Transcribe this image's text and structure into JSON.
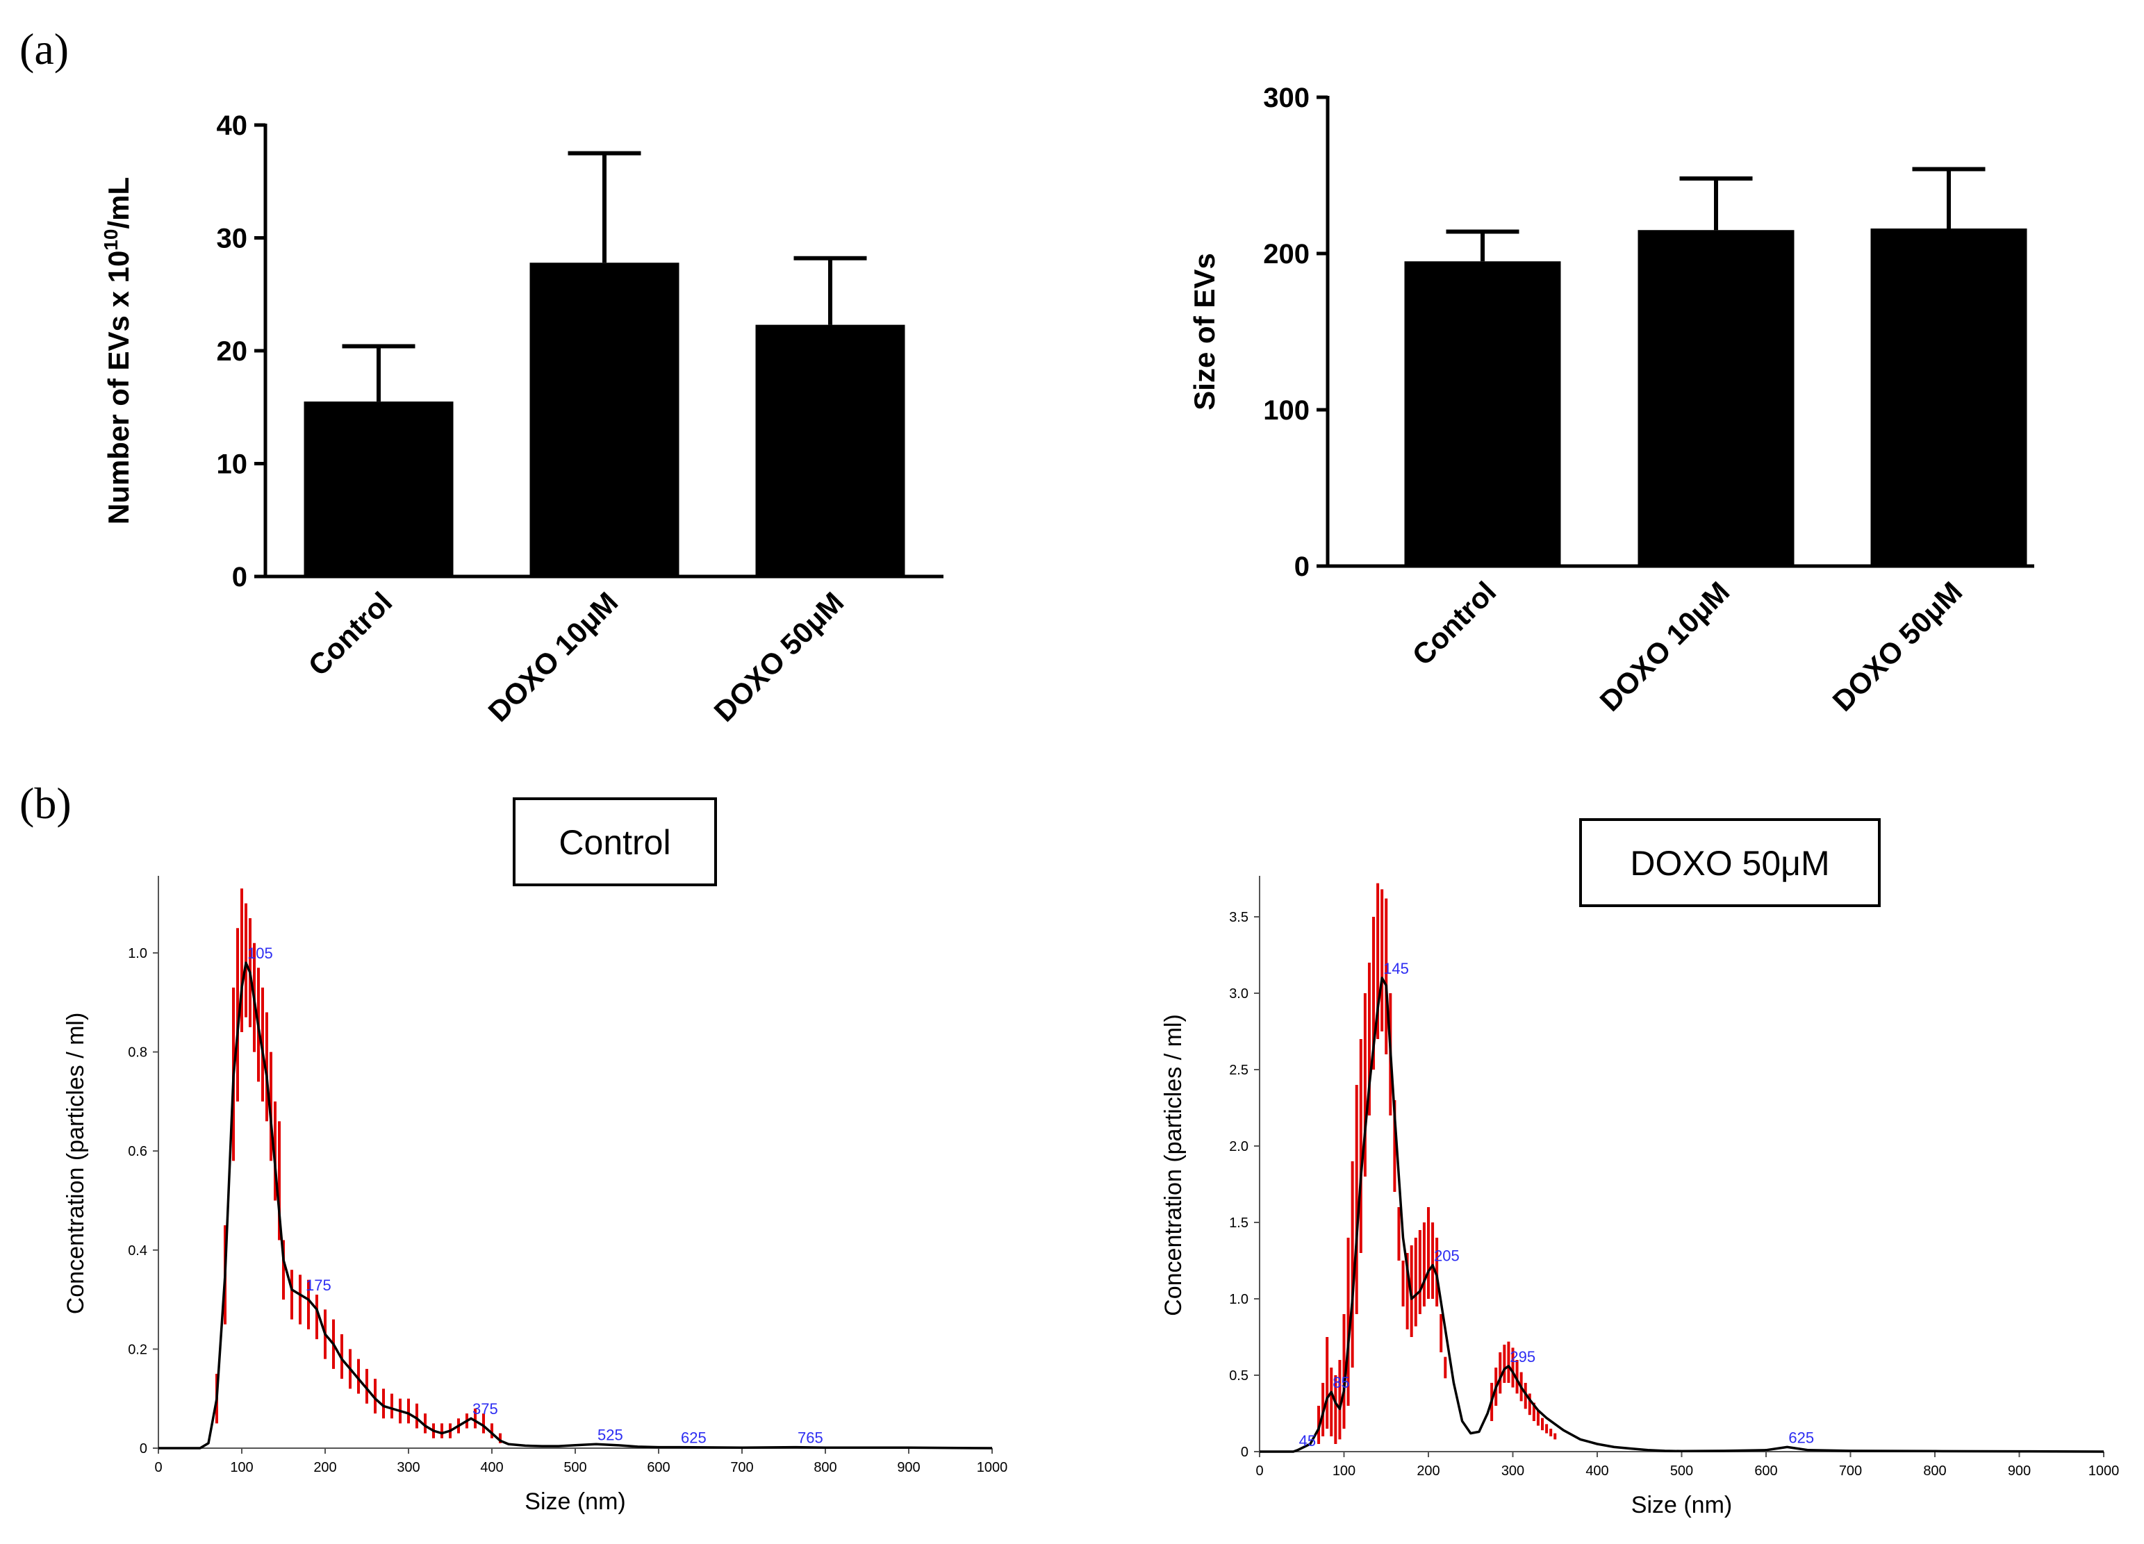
{
  "panel_labels": {
    "a": "(a)",
    "b": "(b)"
  },
  "colors": {
    "bar": "#000000",
    "error": "#e00000",
    "curve": "#000000",
    "peak_label": "#2d2df2",
    "axis": "#000000"
  },
  "chart_data": [
    {
      "id": "count",
      "type": "bar",
      "categories": [
        "Control",
        "DOXO 10μM",
        "DOXO 50μM"
      ],
      "values": [
        15.5,
        27.8,
        22.3
      ],
      "errors": [
        4.9,
        9.7,
        5.9
      ],
      "ylabel": "Number of EVs x 10¹⁰/mL",
      "ylabel_main": "Number of EVs x 10",
      "ylabel_exp": "10",
      "ylabel_tail": "/mL",
      "ylim": [
        0,
        40
      ],
      "yticks": [
        0,
        10,
        20,
        30,
        40
      ]
    },
    {
      "id": "size",
      "type": "bar",
      "categories": [
        "Control",
        "DOXO 10μM",
        "DOXO 50μM"
      ],
      "values": [
        195,
        215,
        216
      ],
      "errors": [
        19,
        33,
        38
      ],
      "ylabel": "Size of EVs",
      "ylim": [
        0,
        300
      ],
      "yticks": [
        0,
        100,
        200,
        300
      ]
    },
    {
      "id": "dist_control",
      "type": "line",
      "title": "Control",
      "xlabel": "Size (nm)",
      "ylabel": "Concentration (particles / ml)",
      "xlim": [
        0,
        1000
      ],
      "ylim": [
        0,
        1.15
      ],
      "xticks": [
        0,
        100,
        200,
        300,
        400,
        500,
        600,
        700,
        800,
        900,
        1000
      ],
      "yticks": [
        "0",
        "0.2",
        "0.4",
        "0.6",
        "0.8",
        "1.0"
      ],
      "x": [
        0,
        50,
        60,
        70,
        80,
        90,
        100,
        105,
        110,
        120,
        130,
        140,
        150,
        160,
        170,
        180,
        190,
        200,
        210,
        220,
        230,
        240,
        250,
        260,
        270,
        280,
        290,
        300,
        310,
        320,
        330,
        340,
        350,
        360,
        370,
        375,
        380,
        390,
        400,
        410,
        420,
        440,
        460,
        480,
        500,
        525,
        550,
        575,
        600,
        625,
        700,
        765,
        800,
        900,
        1000
      ],
      "y": [
        0,
        0,
        0.01,
        0.1,
        0.35,
        0.75,
        0.93,
        0.98,
        0.96,
        0.85,
        0.75,
        0.57,
        0.38,
        0.32,
        0.31,
        0.3,
        0.28,
        0.23,
        0.21,
        0.18,
        0.16,
        0.14,
        0.12,
        0.1,
        0.085,
        0.08,
        0.075,
        0.07,
        0.06,
        0.045,
        0.035,
        0.03,
        0.035,
        0.045,
        0.055,
        0.06,
        0.055,
        0.045,
        0.03,
        0.015,
        0.008,
        0.005,
        0.004,
        0.004,
        0.006,
        0.008,
        0.006,
        0.003,
        0.002,
        0.002,
        0.001,
        0.002,
        0.001,
        0.001,
        0
      ],
      "error_x": [
        70,
        80,
        90,
        95,
        100,
        105,
        110,
        115,
        120,
        125,
        130,
        135,
        140,
        145,
        150,
        160,
        170,
        180,
        190,
        200,
        210,
        220,
        230,
        240,
        250,
        260,
        270,
        280,
        290,
        300,
        310,
        320,
        330,
        340,
        350,
        360,
        370,
        380,
        390,
        400,
        410
      ],
      "error_lo": [
        0.05,
        0.25,
        0.58,
        0.7,
        0.84,
        0.87,
        0.85,
        0.8,
        0.74,
        0.7,
        0.66,
        0.58,
        0.5,
        0.42,
        0.3,
        0.26,
        0.25,
        0.24,
        0.22,
        0.18,
        0.16,
        0.14,
        0.12,
        0.11,
        0.09,
        0.07,
        0.06,
        0.06,
        0.05,
        0.05,
        0.04,
        0.03,
        0.02,
        0.02,
        0.02,
        0.03,
        0.04,
        0.04,
        0.03,
        0.02,
        0.01
      ],
      "error_hi": [
        0.15,
        0.45,
        0.93,
        1.05,
        1.13,
        1.1,
        1.07,
        1.02,
        0.97,
        0.93,
        0.88,
        0.8,
        0.7,
        0.66,
        0.42,
        0.36,
        0.35,
        0.34,
        0.31,
        0.28,
        0.26,
        0.23,
        0.2,
        0.18,
        0.16,
        0.14,
        0.12,
        0.11,
        0.1,
        0.1,
        0.09,
        0.07,
        0.05,
        0.05,
        0.05,
        0.06,
        0.07,
        0.08,
        0.07,
        0.05,
        0.03
      ],
      "peaks": [
        {
          "x": 105,
          "y": 0.98,
          "label": "105"
        },
        {
          "x": 175,
          "y": 0.31,
          "label": "175"
        },
        {
          "x": 375,
          "y": 0.06,
          "label": "375"
        },
        {
          "x": 525,
          "y": 0.008,
          "label": "525"
        },
        {
          "x": 625,
          "y": 0.002,
          "label": "625"
        },
        {
          "x": 765,
          "y": 0.002,
          "label": "765"
        }
      ]
    },
    {
      "id": "dist_doxo50",
      "type": "line",
      "title": "DOXO 50μM",
      "xlabel": "Size (nm)",
      "ylabel": "Concentration (particles / ml)",
      "xlim": [
        0,
        1000
      ],
      "ylim": [
        0,
        3.75
      ],
      "xticks": [
        0,
        100,
        200,
        300,
        400,
        500,
        600,
        700,
        800,
        900,
        1000
      ],
      "yticks": [
        "0",
        "0.5",
        "1.0",
        "1.5",
        "2.0",
        "2.5",
        "3.0",
        "3.5"
      ],
      "x": [
        0,
        40,
        45,
        60,
        70,
        80,
        85,
        90,
        95,
        100,
        110,
        120,
        130,
        140,
        145,
        150,
        160,
        170,
        180,
        190,
        200,
        205,
        210,
        220,
        230,
        240,
        250,
        260,
        270,
        280,
        290,
        295,
        300,
        310,
        320,
        330,
        340,
        350,
        360,
        380,
        400,
        420,
        440,
        460,
        480,
        500,
        550,
        600,
        625,
        650,
        700,
        800,
        900,
        1000
      ],
      "y": [
        0,
        0.0,
        0.01,
        0.05,
        0.15,
        0.35,
        0.39,
        0.32,
        0.28,
        0.4,
        1.0,
        1.8,
        2.4,
        2.9,
        3.1,
        3.05,
        2.2,
        1.4,
        1.0,
        1.05,
        1.18,
        1.22,
        1.15,
        0.8,
        0.45,
        0.2,
        0.12,
        0.13,
        0.25,
        0.42,
        0.54,
        0.56,
        0.52,
        0.42,
        0.34,
        0.27,
        0.22,
        0.18,
        0.14,
        0.08,
        0.05,
        0.03,
        0.02,
        0.01,
        0.005,
        0.003,
        0.005,
        0.01,
        0.03,
        0.01,
        0.005,
        0.003,
        0.002,
        0
      ],
      "error_x": [
        70,
        75,
        80,
        85,
        90,
        95,
        100,
        105,
        110,
        115,
        120,
        125,
        130,
        135,
        140,
        145,
        150,
        155,
        160,
        165,
        170,
        175,
        180,
        185,
        190,
        195,
        200,
        205,
        210,
        215,
        220,
        275,
        280,
        285,
        290,
        295,
        300,
        305,
        310,
        315,
        320,
        325,
        330,
        335,
        340,
        345,
        350
      ],
      "error_lo": [
        0.05,
        0.1,
        0.15,
        0.1,
        0.05,
        0.08,
        0.15,
        0.3,
        0.55,
        0.9,
        1.3,
        1.8,
        2.2,
        2.5,
        2.7,
        2.75,
        2.6,
        2.2,
        1.7,
        1.25,
        0.95,
        0.8,
        0.75,
        0.82,
        0.9,
        0.95,
        1.0,
        1.0,
        0.95,
        0.65,
        0.48,
        0.2,
        0.3,
        0.38,
        0.45,
        0.45,
        0.42,
        0.38,
        0.33,
        0.28,
        0.24,
        0.2,
        0.17,
        0.14,
        0.12,
        0.1,
        0.08
      ],
      "error_hi": [
        0.3,
        0.45,
        0.75,
        0.55,
        0.5,
        0.6,
        0.9,
        1.4,
        1.9,
        2.4,
        2.7,
        3.0,
        3.2,
        3.5,
        3.72,
        3.68,
        3.62,
        3.0,
        2.3,
        1.6,
        1.25,
        1.3,
        1.35,
        1.4,
        1.45,
        1.5,
        1.6,
        1.5,
        1.4,
        0.9,
        0.62,
        0.45,
        0.55,
        0.65,
        0.7,
        0.72,
        0.68,
        0.6,
        0.52,
        0.45,
        0.38,
        0.32,
        0.27,
        0.22,
        0.18,
        0.15,
        0.12
      ],
      "peaks": [
        {
          "x": 45,
          "y": 0.01,
          "label": "45"
        },
        {
          "x": 85,
          "y": 0.39,
          "label": "85"
        },
        {
          "x": 145,
          "y": 3.1,
          "label": "145"
        },
        {
          "x": 205,
          "y": 1.22,
          "label": "205"
        },
        {
          "x": 295,
          "y": 0.56,
          "label": "295"
        },
        {
          "x": 625,
          "y": 0.03,
          "label": "625"
        }
      ]
    }
  ]
}
